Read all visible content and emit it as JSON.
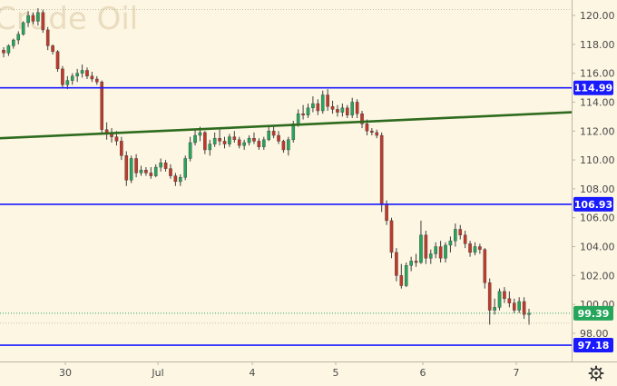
{
  "watermark": "Crude Oil",
  "colors": {
    "background": "#fdf6e3",
    "up": "#26a65b",
    "down": "#c0392b",
    "level_line": "#1a1aff",
    "trend_line": "#2e6b1e",
    "price_line": "#26a65b",
    "badge_blue": "#1a1aff",
    "badge_green": "#26a65b"
  },
  "icons": {
    "settings": "gear-icon"
  },
  "chart_data": {
    "type": "candlestick",
    "title": "",
    "y_axis": {
      "range": [
        96.0,
        121.0
      ],
      "ticks": [
        "120.00",
        "118.00",
        "116.00",
        "114.00",
        "112.00",
        "110.00",
        "108.00",
        "106.00",
        "104.00",
        "102.00",
        "100.00",
        "98.00"
      ]
    },
    "x_axis": {
      "ticks": [
        "30",
        "Jul",
        "4",
        "5",
        "6",
        "7"
      ]
    },
    "horizontal_levels": [
      {
        "value": 114.99,
        "label": "114.99"
      },
      {
        "value": 106.93,
        "label": "106.93"
      },
      {
        "value": 97.18,
        "label": "97.18"
      }
    ],
    "trend_line": {
      "from": {
        "date": "29 Jun",
        "value": 111.5
      },
      "to": {
        "date": "7 Jul",
        "value": 113.3
      }
    },
    "last_price": {
      "value": 99.39,
      "label": "99.39"
    },
    "ohlc": [
      [
        117.6,
        117.8,
        117.1,
        117.4
      ],
      [
        117.4,
        118.0,
        117.2,
        117.9
      ],
      [
        117.9,
        118.4,
        117.7,
        118.3
      ],
      [
        118.3,
        118.9,
        118.0,
        118.7
      ],
      [
        118.7,
        119.6,
        118.6,
        119.5
      ],
      [
        119.5,
        120.3,
        119.2,
        120.0
      ],
      [
        120.0,
        120.2,
        119.4,
        119.6
      ],
      [
        119.6,
        120.5,
        119.3,
        120.2
      ],
      [
        120.2,
        120.4,
        118.8,
        119.0
      ],
      [
        119.0,
        119.2,
        117.6,
        117.9
      ],
      [
        117.9,
        118.0,
        117.3,
        117.5
      ],
      [
        117.5,
        117.6,
        116.1,
        116.3
      ],
      [
        116.3,
        116.5,
        115.0,
        115.2
      ],
      [
        115.2,
        115.8,
        114.9,
        115.5
      ],
      [
        115.5,
        116.0,
        115.2,
        115.8
      ],
      [
        115.8,
        116.3,
        115.4,
        116.0
      ],
      [
        116.0,
        116.6,
        115.7,
        116.2
      ],
      [
        116.2,
        116.4,
        115.6,
        115.8
      ],
      [
        115.8,
        116.1,
        115.4,
        115.6
      ],
      [
        115.6,
        115.8,
        115.2,
        115.4
      ],
      [
        115.4,
        115.5,
        111.8,
        112.1
      ],
      [
        112.1,
        112.6,
        111.4,
        111.8
      ],
      [
        111.8,
        112.2,
        111.2,
        111.6
      ],
      [
        111.6,
        112.0,
        111.0,
        111.3
      ],
      [
        111.3,
        111.6,
        110.0,
        110.3
      ],
      [
        110.3,
        110.6,
        108.2,
        108.6
      ],
      [
        108.6,
        110.3,
        108.4,
        110.1
      ],
      [
        110.1,
        110.4,
        108.8,
        109.1
      ],
      [
        109.1,
        109.6,
        108.9,
        109.3
      ],
      [
        109.3,
        109.5,
        108.9,
        109.1
      ],
      [
        109.1,
        109.5,
        108.7,
        108.9
      ],
      [
        108.9,
        109.7,
        108.8,
        109.5
      ],
      [
        109.5,
        110.1,
        109.2,
        109.8
      ],
      [
        109.8,
        110.0,
        109.2,
        109.4
      ],
      [
        109.4,
        109.7,
        108.7,
        108.9
      ],
      [
        108.9,
        109.1,
        108.2,
        108.5
      ],
      [
        108.5,
        109.0,
        108.2,
        108.8
      ],
      [
        108.8,
        110.3,
        108.6,
        110.1
      ],
      [
        110.1,
        111.6,
        109.9,
        111.2
      ],
      [
        111.2,
        112.1,
        111.0,
        111.7
      ],
      [
        111.7,
        112.3,
        111.3,
        111.9
      ],
      [
        111.9,
        112.0,
        110.4,
        110.7
      ],
      [
        110.7,
        111.4,
        110.3,
        111.1
      ],
      [
        111.1,
        111.9,
        110.9,
        111.5
      ],
      [
        111.5,
        112.1,
        111.0,
        111.3
      ],
      [
        111.3,
        111.6,
        110.8,
        111.1
      ],
      [
        111.1,
        111.8,
        110.9,
        111.6
      ],
      [
        111.6,
        112.0,
        111.2,
        111.4
      ],
      [
        111.4,
        111.6,
        110.8,
        111.0
      ],
      [
        111.0,
        111.4,
        110.7,
        111.2
      ],
      [
        111.2,
        111.7,
        111.0,
        111.5
      ],
      [
        111.5,
        111.9,
        111.1,
        111.3
      ],
      [
        111.3,
        111.5,
        110.7,
        110.9
      ],
      [
        110.9,
        111.6,
        110.7,
        111.4
      ],
      [
        111.4,
        112.3,
        111.3,
        112.0
      ],
      [
        112.0,
        112.4,
        111.5,
        111.7
      ],
      [
        111.7,
        112.0,
        111.1,
        111.3
      ],
      [
        111.3,
        111.4,
        110.5,
        110.7
      ],
      [
        110.7,
        111.6,
        110.3,
        111.4
      ],
      [
        111.4,
        112.7,
        111.2,
        112.5
      ],
      [
        112.5,
        113.5,
        112.3,
        113.2
      ],
      [
        113.2,
        113.8,
        112.8,
        113.1
      ],
      [
        113.1,
        113.9,
        112.9,
        113.6
      ],
      [
        113.6,
        114.4,
        113.3,
        113.9
      ],
      [
        113.9,
        114.2,
        113.1,
        113.4
      ],
      [
        113.4,
        114.8,
        113.2,
        114.5
      ],
      [
        114.5,
        114.9,
        113.4,
        113.7
      ],
      [
        113.7,
        114.1,
        113.2,
        113.5
      ],
      [
        113.5,
        113.8,
        113.0,
        113.3
      ],
      [
        113.3,
        113.9,
        113.0,
        113.6
      ],
      [
        113.6,
        113.8,
        112.9,
        113.1
      ],
      [
        113.1,
        114.3,
        112.9,
        114.0
      ],
      [
        114.0,
        114.2,
        112.9,
        113.2
      ],
      [
        113.2,
        113.4,
        112.2,
        112.5
      ],
      [
        112.5,
        112.8,
        111.7,
        112.0
      ],
      [
        112.0,
        112.2,
        111.7,
        111.9
      ],
      [
        111.9,
        112.1,
        111.5,
        111.7
      ],
      [
        111.7,
        111.9,
        106.4,
        106.9
      ],
      [
        106.9,
        107.2,
        105.5,
        105.8
      ],
      [
        105.8,
        106.0,
        103.2,
        103.6
      ],
      [
        103.6,
        103.9,
        101.6,
        102.0
      ],
      [
        102.0,
        102.8,
        101.1,
        101.3
      ],
      [
        101.3,
        102.9,
        101.2,
        102.7
      ],
      [
        102.7,
        103.3,
        102.3,
        103.0
      ],
      [
        103.0,
        103.5,
        102.6,
        102.9
      ],
      [
        102.9,
        105.8,
        102.8,
        104.8
      ],
      [
        104.8,
        105.1,
        102.8,
        103.2
      ],
      [
        103.2,
        103.8,
        102.8,
        103.5
      ],
      [
        103.5,
        104.3,
        103.2,
        104.0
      ],
      [
        104.0,
        104.4,
        102.9,
        103.2
      ],
      [
        103.2,
        104.3,
        102.9,
        104.1
      ],
      [
        104.1,
        104.7,
        103.6,
        104.4
      ],
      [
        104.4,
        105.6,
        104.0,
        105.2
      ],
      [
        105.2,
        105.5,
        104.5,
        104.8
      ],
      [
        104.8,
        105.1,
        103.9,
        104.2
      ],
      [
        104.2,
        104.4,
        103.3,
        103.6
      ],
      [
        103.6,
        104.3,
        103.4,
        104.0
      ],
      [
        104.0,
        104.2,
        103.5,
        103.8
      ],
      [
        103.8,
        103.9,
        101.1,
        101.5
      ],
      [
        101.5,
        101.8,
        98.6,
        99.6
      ],
      [
        99.6,
        100.4,
        99.3,
        99.8
      ],
      [
        99.8,
        101.1,
        99.6,
        100.9
      ],
      [
        100.9,
        101.2,
        100.1,
        100.4
      ],
      [
        100.4,
        100.9,
        99.8,
        100.1
      ],
      [
        100.1,
        100.4,
        99.4,
        99.6
      ],
      [
        99.6,
        100.5,
        99.4,
        100.2
      ],
      [
        100.2,
        100.5,
        99.0,
        99.3
      ],
      [
        99.3,
        99.7,
        98.6,
        99.39
      ]
    ]
  }
}
